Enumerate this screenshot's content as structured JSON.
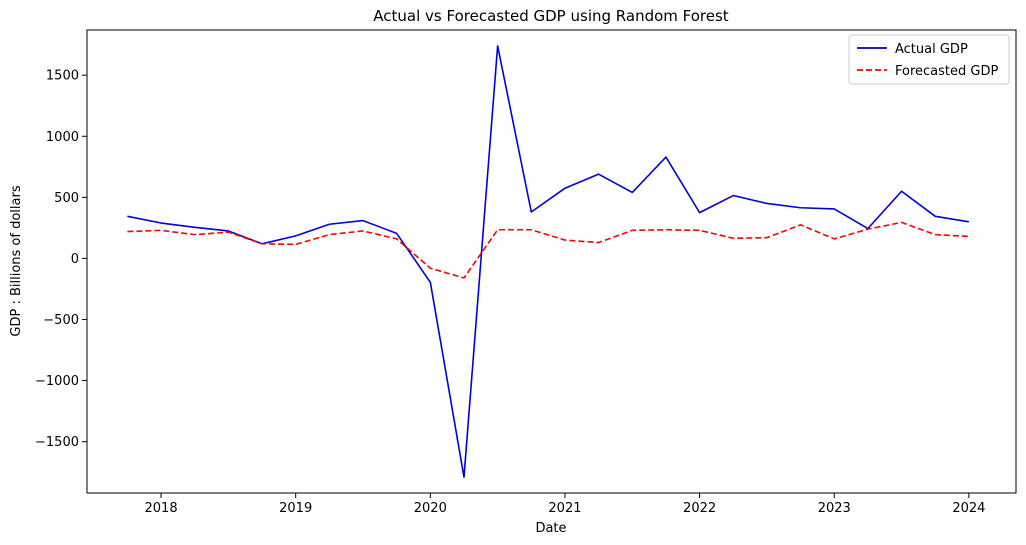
{
  "chart_data": {
    "type": "line",
    "title": "Actual vs Forecasted GDP using Random Forest",
    "xlabel": "Date",
    "ylabel": "GDP : Billions of dollars",
    "xlim": [
      2017.45,
      2024.35
    ],
    "ylim": [
      -1920,
      1870
    ],
    "x_ticks": [
      2018,
      2019,
      2020,
      2021,
      2022,
      2023,
      2024
    ],
    "x_tick_labels": [
      "2018",
      "2019",
      "2020",
      "2021",
      "2022",
      "2023",
      "2024"
    ],
    "y_ticks": [
      -1500,
      -1000,
      -500,
      0,
      500,
      1000,
      1500
    ],
    "y_tick_labels": [
      "−1500",
      "−1000",
      "−500",
      "0",
      "500",
      "1000",
      "1500"
    ],
    "grid": false,
    "legend_position": "upper right",
    "x": [
      2017.75,
      2018.0,
      2018.25,
      2018.5,
      2018.75,
      2019.0,
      2019.25,
      2019.5,
      2019.75,
      2020.0,
      2020.25,
      2020.5,
      2020.75,
      2021.0,
      2021.25,
      2021.5,
      2021.75,
      2022.0,
      2022.25,
      2022.5,
      2022.75,
      2023.0,
      2023.25,
      2023.5,
      2023.75,
      2024.0
    ],
    "series": [
      {
        "name": "Actual GDP",
        "color": "#0000dd",
        "style": "solid",
        "values": [
          345,
          290,
          255,
          225,
          120,
          185,
          280,
          310,
          205,
          -195,
          -1790,
          1740,
          380,
          575,
          690,
          540,
          830,
          375,
          515,
          450,
          415,
          405,
          245,
          550,
          345,
          300
        ]
      },
      {
        "name": "Forecasted GDP",
        "color": "#ff0000",
        "style": "dashed",
        "values": [
          220,
          230,
          195,
          215,
          120,
          115,
          195,
          225,
          160,
          -80,
          -160,
          235,
          235,
          150,
          130,
          230,
          235,
          230,
          165,
          170,
          275,
          160,
          240,
          295,
          195,
          180
        ]
      }
    ]
  }
}
